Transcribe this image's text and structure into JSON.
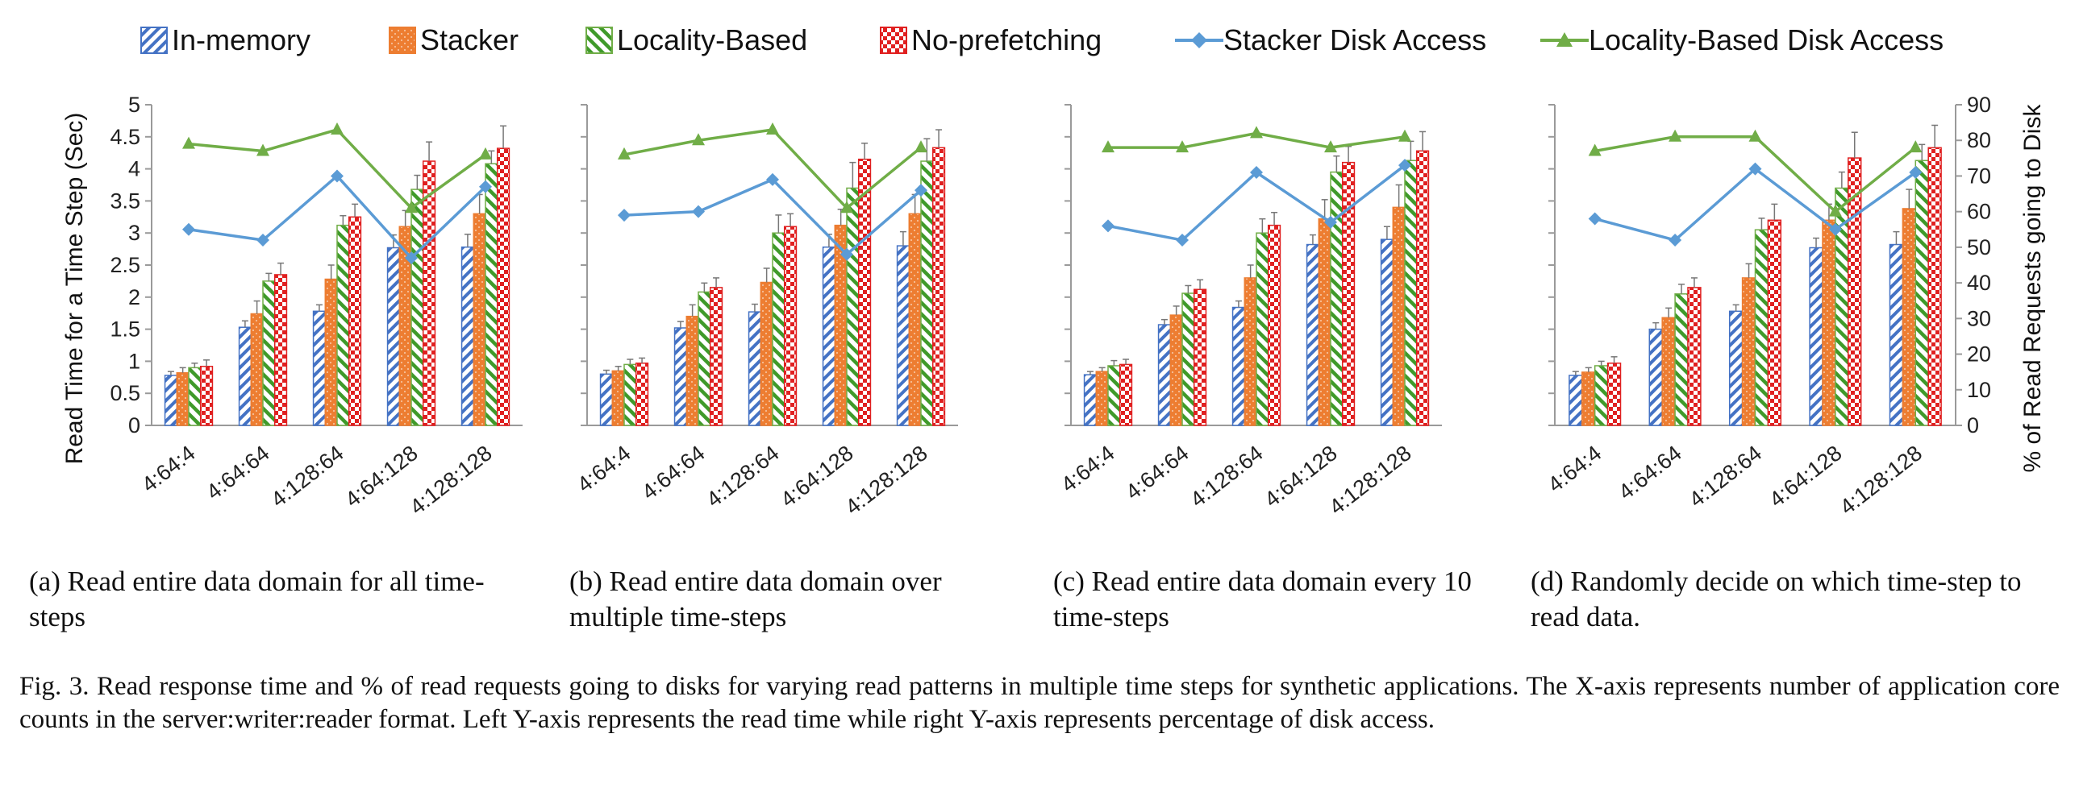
{
  "legend": [
    {
      "label": "In-memory",
      "kind": "bar",
      "pattern": "diag-blue"
    },
    {
      "label": "Stacker",
      "kind": "bar",
      "pattern": "dots-orange"
    },
    {
      "label": "Locality-Based",
      "kind": "bar",
      "pattern": "diag-green"
    },
    {
      "label": "No-prefetching",
      "kind": "bar",
      "pattern": "check-red"
    },
    {
      "label": "Stacker Disk Access",
      "kind": "line",
      "marker": "diamond",
      "color": "#5b9bd5"
    },
    {
      "label": "Locality-Based Disk Access",
      "kind": "line",
      "marker": "triangle",
      "color": "#70ad47"
    }
  ],
  "colors": {
    "in_memory": "#4472c4",
    "stacker": "#ed7d31",
    "locality_based": "#70ad47",
    "no_prefetching": "#e02020",
    "stacker_line": "#5b9bd5",
    "locality_line": "#70ad47"
  },
  "left_axis_title": "Read Time for a Time Step (Sec)",
  "right_axis_title": "% of Read Requests going to Disk",
  "captions": [
    "(a) Read entire data domain for all time-steps",
    "(b) Read entire data domain over multiple time-steps",
    "(c) Read entire data domain every 10 time-steps",
    "(d) Randomly decide on which time-step to read data."
  ],
  "figure_caption": "Fig. 3.  Read response time and % of read requests going to disks for varying read patterns in multiple time steps for synthetic applications. The X-axis represents number of application core counts in the server:writer:reader format. Left Y-axis represents the read time while right Y-axis represents percentage of disk access.",
  "chart_data": [
    {
      "type": "bar",
      "categories": [
        "4:64:4",
        "4:64:64",
        "4:128:64",
        "4:64:128",
        "4:128:128"
      ],
      "ylim": [
        0,
        5
      ],
      "yticks": [
        "0",
        "0.5",
        "1",
        "1.5",
        "2",
        "2.5",
        "3",
        "3.5",
        "4",
        "4.5",
        "5"
      ],
      "y2lim": [
        0,
        90
      ],
      "y2ticks": [
        "0",
        "10",
        "20",
        "30",
        "40",
        "50",
        "60",
        "70",
        "80",
        "90"
      ],
      "series": [
        {
          "name": "In-memory",
          "values": [
            0.78,
            1.53,
            1.78,
            2.77,
            2.78
          ],
          "err": [
            0.06,
            0.1,
            0.1,
            0.2,
            0.2
          ]
        },
        {
          "name": "Stacker",
          "values": [
            0.82,
            1.74,
            2.28,
            3.1,
            3.3
          ],
          "err": [
            0.08,
            0.2,
            0.22,
            0.25,
            0.3
          ]
        },
        {
          "name": "Locality-Based",
          "values": [
            0.9,
            2.25,
            3.12,
            3.68,
            4.08
          ],
          "err": [
            0.07,
            0.12,
            0.15,
            0.22,
            0.2
          ]
        },
        {
          "name": "No-prefetching",
          "values": [
            0.92,
            2.35,
            3.25,
            4.12,
            4.32
          ],
          "err": [
            0.1,
            0.18,
            0.2,
            0.3,
            0.35
          ]
        }
      ],
      "lines": [
        {
          "name": "Stacker Disk Access",
          "values": [
            55,
            52,
            70,
            47,
            67
          ]
        },
        {
          "name": "Locality-Based Disk Access",
          "values": [
            79,
            77,
            83,
            61,
            76
          ]
        }
      ]
    },
    {
      "type": "bar",
      "categories": [
        "4:64:4",
        "4:64:64",
        "4:128:64",
        "4:64:128",
        "4:128:128"
      ],
      "ylim": [
        0,
        5
      ],
      "y2lim": [
        0,
        90
      ],
      "series": [
        {
          "name": "In-memory",
          "values": [
            0.8,
            1.52,
            1.77,
            2.78,
            2.8
          ],
          "err": [
            0.06,
            0.1,
            0.12,
            0.2,
            0.22
          ]
        },
        {
          "name": "Stacker",
          "values": [
            0.85,
            1.7,
            2.23,
            3.12,
            3.3
          ],
          "err": [
            0.07,
            0.18,
            0.22,
            0.25,
            0.3
          ]
        },
        {
          "name": "Locality-Based",
          "values": [
            0.95,
            2.08,
            3.0,
            3.7,
            4.12
          ],
          "err": [
            0.08,
            0.14,
            0.28,
            0.4,
            0.35
          ]
        },
        {
          "name": "No-prefetching",
          "values": [
            0.97,
            2.15,
            3.1,
            4.15,
            4.33
          ],
          "err": [
            0.08,
            0.15,
            0.2,
            0.25,
            0.28
          ]
        }
      ],
      "lines": [
        {
          "name": "Stacker Disk Access",
          "values": [
            59,
            60,
            69,
            48,
            66
          ]
        },
        {
          "name": "Locality-Based Disk Access",
          "values": [
            76,
            80,
            83,
            61,
            78
          ]
        }
      ]
    },
    {
      "type": "bar",
      "categories": [
        "4:64:4",
        "4:64:64",
        "4:128:64",
        "4:64:128",
        "4:128:128"
      ],
      "ylim": [
        0,
        5
      ],
      "y2lim": [
        0,
        90
      ],
      "series": [
        {
          "name": "In-memory",
          "values": [
            0.79,
            1.57,
            1.84,
            2.82,
            2.9
          ],
          "err": [
            0.05,
            0.08,
            0.1,
            0.15,
            0.2
          ]
        },
        {
          "name": "Stacker",
          "values": [
            0.84,
            1.72,
            2.3,
            3.22,
            3.4
          ],
          "err": [
            0.06,
            0.14,
            0.2,
            0.3,
            0.35
          ]
        },
        {
          "name": "Locality-Based",
          "values": [
            0.93,
            2.06,
            3.0,
            3.95,
            4.13
          ],
          "err": [
            0.08,
            0.12,
            0.22,
            0.25,
            0.3
          ]
        },
        {
          "name": "No-prefetching",
          "values": [
            0.95,
            2.12,
            3.12,
            4.1,
            4.28
          ],
          "err": [
            0.08,
            0.15,
            0.2,
            0.25,
            0.3
          ]
        }
      ],
      "lines": [
        {
          "name": "Stacker Disk Access",
          "values": [
            56,
            52,
            71,
            57,
            73
          ]
        },
        {
          "name": "Locality-Based Disk Access",
          "values": [
            78,
            78,
            82,
            78,
            81
          ]
        }
      ]
    },
    {
      "type": "bar",
      "categories": [
        "4:64:4",
        "4:64:64",
        "4:128:64",
        "4:64:128",
        "4:128:128"
      ],
      "ylim": [
        0,
        5
      ],
      "y2lim": [
        0,
        90
      ],
      "series": [
        {
          "name": "In-memory",
          "values": [
            0.78,
            1.5,
            1.78,
            2.77,
            2.82
          ],
          "err": [
            0.06,
            0.1,
            0.1,
            0.15,
            0.2
          ]
        },
        {
          "name": "Stacker",
          "values": [
            0.83,
            1.68,
            2.3,
            3.2,
            3.38
          ],
          "err": [
            0.07,
            0.15,
            0.22,
            0.25,
            0.3
          ]
        },
        {
          "name": "Locality-Based",
          "values": [
            0.93,
            2.05,
            3.05,
            3.7,
            4.13
          ],
          "err": [
            0.07,
            0.15,
            0.18,
            0.25,
            0.25
          ]
        },
        {
          "name": "No-prefetching",
          "values": [
            0.97,
            2.15,
            3.2,
            4.17,
            4.33
          ],
          "err": [
            0.1,
            0.15,
            0.25,
            0.4,
            0.35
          ]
        }
      ],
      "lines": [
        {
          "name": "Stacker Disk Access",
          "values": [
            58,
            52,
            72,
            55,
            71
          ]
        },
        {
          "name": "Locality-Based Disk Access",
          "values": [
            77,
            81,
            81,
            60,
            78
          ]
        }
      ]
    }
  ]
}
